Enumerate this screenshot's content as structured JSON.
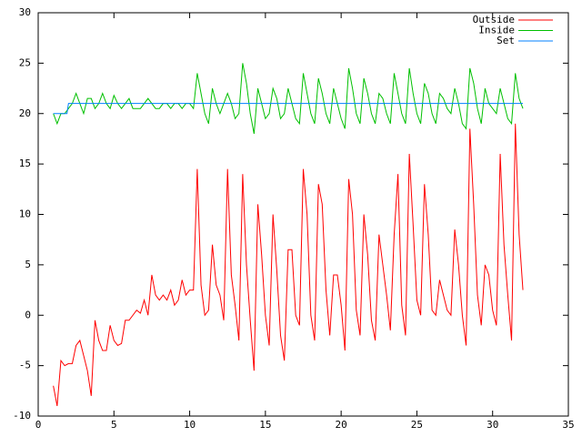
{
  "chart_data": {
    "type": "line",
    "x": [
      1,
      1.25,
      1.5,
      1.75,
      2,
      2.25,
      2.5,
      2.75,
      3,
      3.25,
      3.5,
      3.75,
      4,
      4.25,
      4.5,
      4.75,
      5,
      5.25,
      5.5,
      5.75,
      6,
      6.25,
      6.5,
      6.75,
      7,
      7.25,
      7.5,
      7.75,
      8,
      8.25,
      8.5,
      8.75,
      9,
      9.25,
      9.5,
      9.75,
      10,
      10.25,
      10.5,
      10.75,
      11,
      11.25,
      11.5,
      11.75,
      12,
      12.25,
      12.5,
      12.75,
      13,
      13.25,
      13.5,
      13.75,
      14,
      14.25,
      14.5,
      14.75,
      15,
      15.25,
      15.5,
      15.75,
      16,
      16.25,
      16.5,
      16.75,
      17,
      17.25,
      17.5,
      17.75,
      18,
      18.25,
      18.5,
      18.75,
      19,
      19.25,
      19.5,
      19.75,
      20,
      20.25,
      20.5,
      20.75,
      21,
      21.25,
      21.5,
      21.75,
      22,
      22.25,
      22.5,
      22.75,
      23,
      23.25,
      23.5,
      23.75,
      24,
      24.25,
      24.5,
      24.75,
      25,
      25.25,
      25.5,
      25.75,
      26,
      26.25,
      26.5,
      26.75,
      27,
      27.25,
      27.5,
      27.75,
      28,
      28.25,
      28.5,
      28.75,
      29,
      29.25,
      29.5,
      29.75,
      30,
      30.25,
      30.5,
      30.75,
      31,
      31.25,
      31.5,
      31.75,
      32
    ],
    "series": [
      {
        "name": "Outside",
        "color": "#ff0000",
        "values": [
          -7,
          -9,
          -4.5,
          -5,
          -4.8,
          -4.8,
          -3,
          -2.5,
          -4,
          -5.5,
          -8,
          -0.5,
          -2.5,
          -3.5,
          -3.5,
          -1,
          -2.5,
          -3,
          -2.8,
          -0.5,
          -0.5,
          0,
          0.5,
          0.2,
          1.5,
          0,
          4,
          2,
          1.5,
          2,
          1.5,
          2.5,
          1,
          1.5,
          3.5,
          2,
          2.5,
          2.5,
          14.5,
          3,
          0,
          0.5,
          7,
          3,
          2,
          -0.5,
          14.5,
          4,
          1,
          -2.5,
          14,
          5,
          -0.5,
          -5.5,
          11,
          6,
          0,
          -3,
          10,
          4.5,
          -2,
          -4.5,
          6.5,
          6.5,
          0,
          -1,
          14.5,
          10,
          0,
          -2.5,
          13,
          11,
          2.5,
          -2,
          4,
          4,
          1,
          -3.5,
          13.5,
          10,
          0.5,
          -2,
          10,
          6,
          -0.5,
          -2.5,
          8,
          5,
          2,
          -1.5,
          8,
          14,
          1,
          -2,
          16,
          9,
          1.5,
          0,
          13,
          8,
          0.5,
          0,
          3.5,
          2,
          0.5,
          0,
          8.5,
          5,
          0,
          -3,
          18.5,
          11,
          2,
          -1,
          5,
          4,
          0.5,
          -1,
          16,
          7,
          2,
          -2.5,
          19,
          8,
          2.5
        ]
      },
      {
        "name": "Inside",
        "color": "#00c000",
        "values": [
          20,
          19,
          20,
          20,
          20.5,
          21,
          22,
          21,
          20,
          21.5,
          21.5,
          20.5,
          21,
          22,
          21,
          20.5,
          21.8,
          21,
          20.5,
          21,
          21.5,
          20.5,
          20.5,
          20.5,
          21,
          21.5,
          21,
          20.5,
          20.5,
          21,
          21,
          20.5,
          21,
          21,
          20.5,
          21,
          21,
          20.5,
          24,
          22,
          20,
          19,
          22.5,
          21,
          20,
          21,
          22,
          21,
          19.5,
          20,
          25,
          23,
          20,
          18,
          22.5,
          21,
          19.5,
          20,
          22.5,
          21.5,
          19.5,
          20,
          22.5,
          21,
          19.5,
          19,
          24,
          22,
          20,
          19,
          23.5,
          22,
          20,
          19,
          22.5,
          21,
          19.5,
          18.5,
          24.5,
          22.5,
          20,
          19,
          23.5,
          22,
          20,
          19,
          22,
          21.5,
          20,
          19,
          24,
          22,
          20,
          19,
          24.5,
          22,
          20,
          19,
          23,
          22,
          20,
          19,
          22,
          21.5,
          20.5,
          20,
          22.5,
          21,
          19,
          18.5,
          24.5,
          23,
          20.5,
          19,
          22.5,
          21,
          20.5,
          20,
          22.5,
          21,
          19.5,
          19,
          24,
          21.5,
          20.5
        ]
      },
      {
        "name": "Set",
        "color": "#0080ff",
        "x": [
          1,
          1.9,
          2,
          32
        ],
        "values": [
          20,
          20,
          21,
          21
        ]
      }
    ],
    "xlim": [
      0,
      35
    ],
    "xticks": [
      0,
      5,
      10,
      15,
      20,
      25,
      30,
      35
    ],
    "ylim": [
      -10,
      30
    ],
    "yticks": [
      -10,
      -5,
      0,
      5,
      10,
      15,
      20,
      25,
      30
    ],
    "legend": "top-right",
    "grid": false
  }
}
